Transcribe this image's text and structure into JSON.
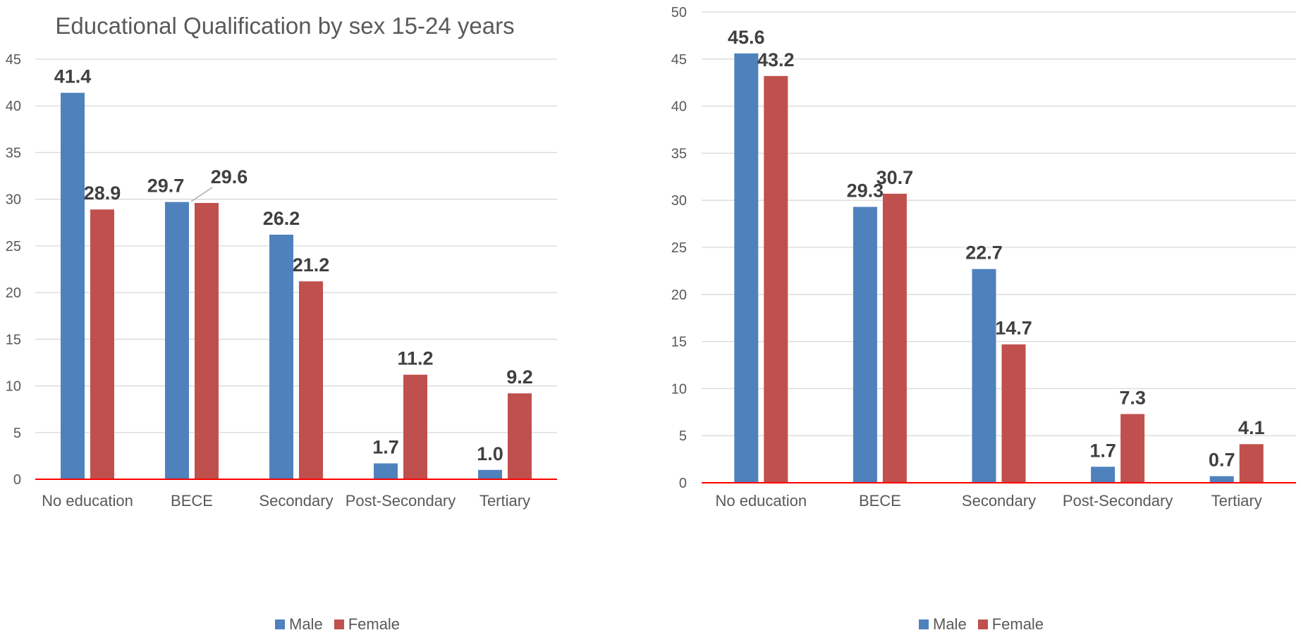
{
  "charts": [
    {
      "id": "left",
      "chart_data": {
        "type": "bar",
        "title": "Educational Qualification by sex 15-24 years",
        "categories": [
          "No education",
          "BECE",
          "Secondary",
          "Post-Secondary",
          "Tertiary"
        ],
        "series": [
          {
            "name": "Male",
            "color": "#4F81BD",
            "values": [
              41.4,
              29.7,
              26.2,
              1.7,
              1.0
            ],
            "labels": [
              "41.4",
              "29.7",
              "26.2",
              "1.7",
              "1.0"
            ]
          },
          {
            "name": "Female",
            "color": "#C0504D",
            "values": [
              28.9,
              29.6,
              21.2,
              11.2,
              9.2
            ],
            "labels": [
              "28.9",
              "29.6",
              "21.2",
              "11.2",
              "9.2"
            ]
          }
        ],
        "ylim": [
          0,
          45
        ],
        "yticks": [
          0,
          5,
          10,
          15,
          20,
          25,
          30,
          35,
          40,
          45
        ],
        "grid": true,
        "legend_position": "bottom"
      }
    },
    {
      "id": "right",
      "chart_data": {
        "type": "bar",
        "title": "",
        "categories": [
          "No education",
          "BECE",
          "Secondary",
          "Post-Secondary",
          "Tertiary"
        ],
        "series": [
          {
            "name": "Male",
            "color": "#4F81BD",
            "values": [
              45.6,
              29.3,
              22.7,
              1.7,
              0.7
            ],
            "labels": [
              "45.6",
              "29.3",
              "22.7",
              "1.7",
              "0.7"
            ]
          },
          {
            "name": "Female",
            "color": "#C0504D",
            "values": [
              43.2,
              30.7,
              14.7,
              7.3,
              4.1
            ],
            "labels": [
              "43.2",
              "30.7",
              "14.7",
              "7.3",
              "4.1"
            ]
          }
        ],
        "ylim": [
          0,
          50
        ],
        "yticks": [
          0,
          5,
          10,
          15,
          20,
          25,
          30,
          35,
          40,
          45,
          50
        ],
        "grid": true,
        "legend_position": "bottom"
      }
    }
  ],
  "style": {
    "axis_line_color": "#FF0000",
    "grid_color": "#D9D9D9"
  }
}
